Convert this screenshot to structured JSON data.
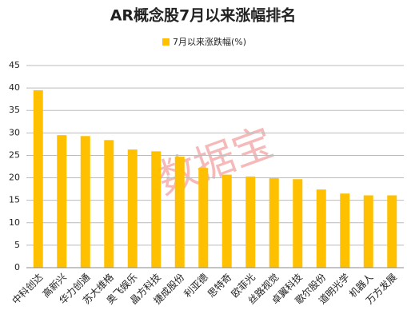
{
  "chart_data": {
    "type": "bar",
    "title": "AR概念股7月以来涨幅排名",
    "watermark": "数据宝",
    "categories": [
      "中科创达",
      "高新兴",
      "华力创通",
      "苏大维格",
      "奥飞娱乐",
      "晶方科技",
      "捷成股份",
      "利亚德",
      "思特奇",
      "欧菲光",
      "丝路视觉",
      "卓翼科技",
      "歌尔股份",
      "道明光学",
      "机器人",
      "万方发展"
    ],
    "series": [
      {
        "name": "7月以来涨跌幅(%)",
        "color": "#ffc000",
        "values": [
          39.5,
          29.5,
          29.3,
          28.4,
          26.3,
          25.9,
          24.7,
          22.2,
          20.7,
          20.3,
          19.9,
          19.7,
          17.4,
          16.5,
          16.1,
          16.1
        ]
      }
    ],
    "ylim": [
      0,
      45
    ],
    "yticks": [
      0,
      5,
      10,
      15,
      20,
      25,
      30,
      35,
      40,
      45
    ],
    "grid": true
  }
}
